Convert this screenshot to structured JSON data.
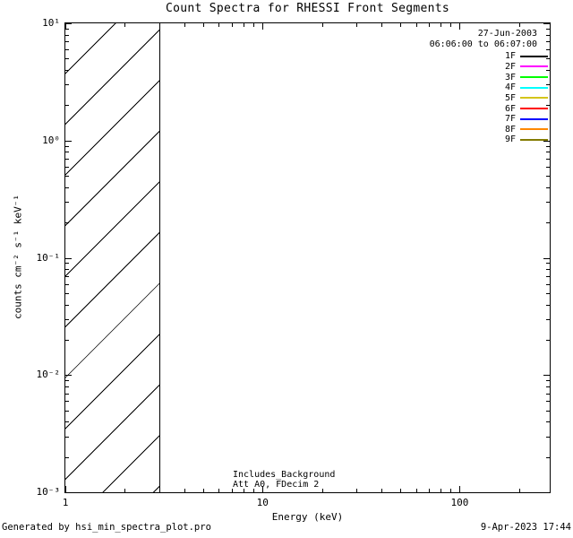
{
  "title": "Count Spectra for RHESSI Front Segments",
  "header": {
    "date": "27-Jun-2003",
    "time_range": "06:06:00 to 06:07:00"
  },
  "legend": {
    "position": "top-right-inside",
    "entries": [
      {
        "label": "1F",
        "color": "#000000"
      },
      {
        "label": "2F",
        "color": "#ff00ff"
      },
      {
        "label": "3F",
        "color": "#00ff00"
      },
      {
        "label": "4F",
        "color": "#00ffff"
      },
      {
        "label": "5F",
        "color": "#d4c51a"
      },
      {
        "label": "6F",
        "color": "#ff0000"
      },
      {
        "label": "7F",
        "color": "#0000ff"
      },
      {
        "label": "8F",
        "color": "#ff8800"
      },
      {
        "label": "9F",
        "color": "#837b00"
      }
    ]
  },
  "annotation": {
    "line1": "Includes_Background",
    "line2": "Att A0, FDecim 2"
  },
  "footer": {
    "left": "Generated by hsi_min_spectra_plot.pro",
    "right": "9-Apr-2023 17:44"
  },
  "chart_data": {
    "type": "line",
    "title": "Count Spectra for RHESSI Front Segments",
    "xlabel": "Energy (keV)",
    "ylabel": "counts cm⁻² s⁻¹ keV⁻¹",
    "xscale": "log",
    "yscale": "log",
    "xlim": [
      1,
      286
    ],
    "ylim": [
      0.001,
      10
    ],
    "x_major_ticks": [
      1,
      10,
      100
    ],
    "x_tick_labels": [
      "1",
      "10",
      "100"
    ],
    "y_major_ticks": [
      10,
      1,
      0.1,
      0.01,
      0.001
    ],
    "y_tick_exponents": [
      1,
      0,
      -1,
      -2,
      -3
    ],
    "y_tick_labels": [
      "10¹",
      "10⁰",
      "10⁻¹",
      "10⁻²",
      "10⁻³"
    ],
    "grid": false,
    "hatched_region": {
      "x_from": 1,
      "x_to": 3,
      "style": "diagonal-45deg",
      "meaning": "below attenuator threshold"
    },
    "series": [
      {
        "name": "1F",
        "color": "#000000",
        "values": []
      },
      {
        "name": "2F",
        "color": "#ff00ff",
        "values": []
      },
      {
        "name": "3F",
        "color": "#00ff00",
        "values": []
      },
      {
        "name": "4F",
        "color": "#00ffff",
        "values": []
      },
      {
        "name": "5F",
        "color": "#d4c51a",
        "values": []
      },
      {
        "name": "6F",
        "color": "#ff0000",
        "values": []
      },
      {
        "name": "7F",
        "color": "#0000ff",
        "values": []
      },
      {
        "name": "8F",
        "color": "#ff8800",
        "values": []
      },
      {
        "name": "9F",
        "color": "#837b00",
        "values": []
      }
    ],
    "note_visible_curves": "no spectra curves visible in plot area"
  }
}
